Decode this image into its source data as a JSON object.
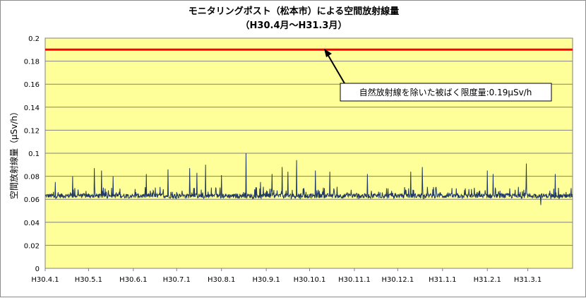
{
  "chart_data": {
    "type": "line",
    "title": "モニタリングポスト（松本市）による空間放射線量",
    "subtitle": "（H30.4月～H31.3月）",
    "xlabel": "",
    "ylabel": "空間放射線量（μSv/h）",
    "ylim": [
      0,
      0.2
    ],
    "yticks": [
      "0",
      "0.02",
      "0.04",
      "0.06",
      "0.08",
      "0.1",
      "0.12",
      "0.14",
      "0.16",
      "0.18",
      "0.2"
    ],
    "x_ticks": [
      "H30.4.1",
      "H30.5.1",
      "H30.6.1",
      "H30.7.1",
      "H30.8.1",
      "H30.9.1",
      "H30.10.1",
      "H30.11.1",
      "H30.12.1",
      "H31.1.1",
      "H31.2.1",
      "H31.3.1"
    ],
    "grid": true,
    "background_color": "#FFFF99",
    "series": [
      {
        "color": "#1F3864",
        "baseline": 0.063,
        "typical_range": [
          0.06,
          0.07
        ],
        "peaks": [
          {
            "x": "H30.4.8",
            "y": 0.075
          },
          {
            "x": "H30.4.20",
            "y": 0.08
          },
          {
            "x": "H30.5.5",
            "y": 0.087
          },
          {
            "x": "H30.5.10",
            "y": 0.085
          },
          {
            "x": "H30.5.18",
            "y": 0.08
          },
          {
            "x": "H30.6.10",
            "y": 0.082
          },
          {
            "x": "H30.6.25",
            "y": 0.086
          },
          {
            "x": "H30.7.10",
            "y": 0.087
          },
          {
            "x": "H30.7.15",
            "y": 0.083
          },
          {
            "x": "H30.7.21",
            "y": 0.09
          },
          {
            "x": "H30.8.1",
            "y": 0.081
          },
          {
            "x": "H30.8.18",
            "y": 0.1
          },
          {
            "x": "H30.8.28",
            "y": 0.075
          },
          {
            "x": "H30.9.5",
            "y": 0.082
          },
          {
            "x": "H30.9.12",
            "y": 0.088
          },
          {
            "x": "H30.9.16",
            "y": 0.084
          },
          {
            "x": "H30.9.22",
            "y": 0.094
          },
          {
            "x": "H30.10.5",
            "y": 0.085
          },
          {
            "x": "H30.10.15",
            "y": 0.084
          },
          {
            "x": "H30.11.10",
            "y": 0.082
          },
          {
            "x": "H30.12.10",
            "y": 0.084
          },
          {
            "x": "H30.12.18",
            "y": 0.088
          },
          {
            "x": "H31.2.1",
            "y": 0.085
          },
          {
            "x": "H31.2.5",
            "y": 0.082
          },
          {
            "x": "H31.2.28",
            "y": 0.091
          },
          {
            "x": "H31.3.20",
            "y": 0.082
          }
        ],
        "dips": [
          {
            "x": "H31.3.10",
            "y": 0.055
          }
        ]
      }
    ],
    "reference_line": {
      "y": 0.19,
      "color": "#FF0000"
    },
    "annotation": "自然放射線を除いた被ばく限度量:0.19μSv/h"
  }
}
